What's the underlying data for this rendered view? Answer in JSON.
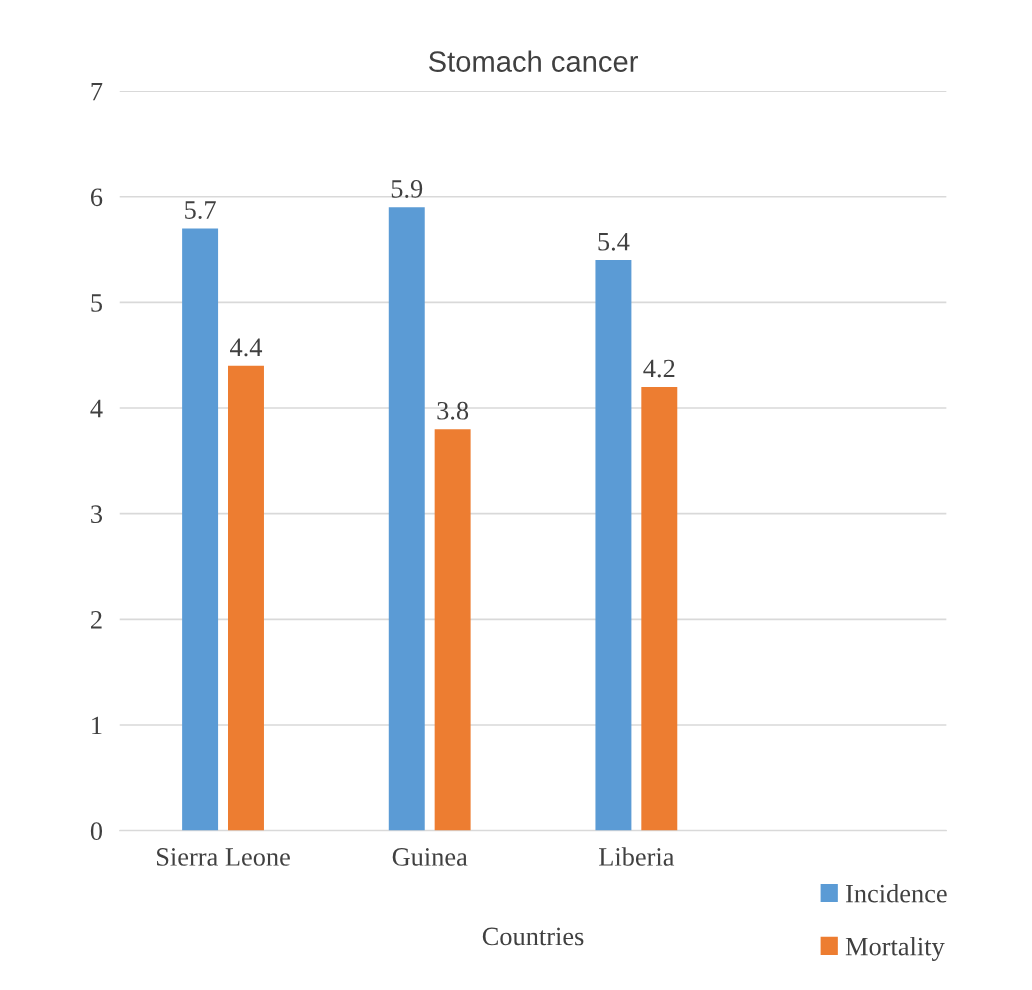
{
  "chart_data": {
    "type": "bar",
    "title": "Stomach cancer",
    "xlabel": "Countries",
    "categories": [
      "Sierra Leone",
      "Guinea",
      "Liberia",
      null
    ],
    "series": [
      {
        "name": "Incidence",
        "color": "#5b9bd5",
        "values": [
          5.7,
          5.9,
          5.4,
          null
        ]
      },
      {
        "name": "Mortality",
        "color": "#ed7d31",
        "values": [
          4.4,
          3.8,
          4.2,
          null
        ]
      }
    ],
    "ylim": [
      0,
      7
    ],
    "yticks": [
      0,
      1,
      2,
      3,
      4,
      5,
      6,
      7
    ],
    "grid": "y",
    "legend": "bottom right",
    "data_labels": true
  }
}
